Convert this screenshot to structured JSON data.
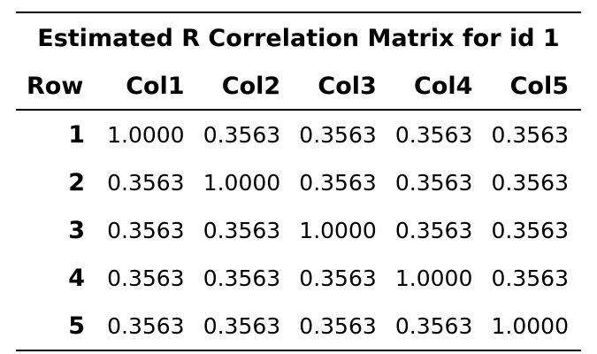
{
  "title": "Estimated R Correlation Matrix for id 1",
  "header": {
    "row_label": "Row",
    "columns": [
      "Col1",
      "Col2",
      "Col3",
      "Col4",
      "Col5"
    ]
  },
  "rows": [
    {
      "row": "1",
      "values": [
        "1.0000",
        "0.3563",
        "0.3563",
        "0.3563",
        "0.3563"
      ]
    },
    {
      "row": "2",
      "values": [
        "0.3563",
        "1.0000",
        "0.3563",
        "0.3563",
        "0.3563"
      ]
    },
    {
      "row": "3",
      "values": [
        "0.3563",
        "0.3563",
        "1.0000",
        "0.3563",
        "0.3563"
      ]
    },
    {
      "row": "4",
      "values": [
        "0.3563",
        "0.3563",
        "0.3563",
        "1.0000",
        "0.3563"
      ]
    },
    {
      "row": "5",
      "values": [
        "0.3563",
        "0.3563",
        "0.3563",
        "0.3563",
        "1.0000"
      ]
    }
  ]
}
